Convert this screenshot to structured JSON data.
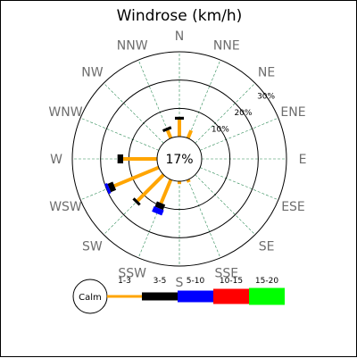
{
  "chart_data": {
    "type": "windrose",
    "title": "Windrose (km/h)",
    "calm_percent_label": "17%",
    "directions": [
      "N",
      "NNE",
      "NE",
      "ENE",
      "E",
      "ESE",
      "SE",
      "SSE",
      "S",
      "SSW",
      "SW",
      "WSW",
      "W",
      "WNW",
      "NW",
      "NNW"
    ],
    "ring_labels": [
      "10%",
      "20%",
      "30%"
    ],
    "ring_values": [
      10,
      20,
      30
    ],
    "calm_label": "Calm",
    "speed_bins": [
      {
        "label": "1-3",
        "color": "#ffa500"
      },
      {
        "label": "3-5",
        "color": "#000000"
      },
      {
        "label": "5-10",
        "color": "#0000ff"
      },
      {
        "label": "10-15",
        "color": "#ff0000"
      },
      {
        "label": "15-20",
        "color": "#00ff00"
      }
    ],
    "series": [
      {
        "direction": "N",
        "values": [
          6,
          1,
          0,
          0,
          0
        ]
      },
      {
        "direction": "NNE",
        "values": [
          3,
          0,
          0,
          0,
          0
        ]
      },
      {
        "direction": "NE",
        "values": [
          0,
          0,
          0,
          0,
          0
        ]
      },
      {
        "direction": "ENE",
        "values": [
          0,
          0,
          0,
          0,
          0
        ]
      },
      {
        "direction": "E",
        "values": [
          0,
          0,
          0,
          0,
          0
        ]
      },
      {
        "direction": "ESE",
        "values": [
          0,
          0,
          0,
          0,
          0
        ]
      },
      {
        "direction": "SE",
        "values": [
          0,
          0,
          0,
          0,
          0
        ]
      },
      {
        "direction": "SSE",
        "values": [
          1,
          0,
          0,
          0,
          0
        ]
      },
      {
        "direction": "S",
        "values": [
          1,
          0,
          0,
          0,
          0
        ]
      },
      {
        "direction": "SSW",
        "values": [
          9,
          2,
          2,
          0,
          0
        ]
      },
      {
        "direction": "SW",
        "values": [
          13,
          1,
          0,
          0,
          0
        ]
      },
      {
        "direction": "WSW",
        "values": [
          17,
          2,
          1,
          0,
          0
        ]
      },
      {
        "direction": "W",
        "values": [
          12,
          2,
          0,
          0,
          0
        ]
      },
      {
        "direction": "WNW",
        "values": [
          0,
          0,
          0,
          0,
          0
        ]
      },
      {
        "direction": "NW",
        "values": [
          0,
          0,
          0,
          0,
          0
        ]
      },
      {
        "direction": "NNW",
        "values": [
          3,
          1,
          0,
          0,
          0
        ]
      }
    ],
    "max_percent": 30,
    "grid": true
  }
}
